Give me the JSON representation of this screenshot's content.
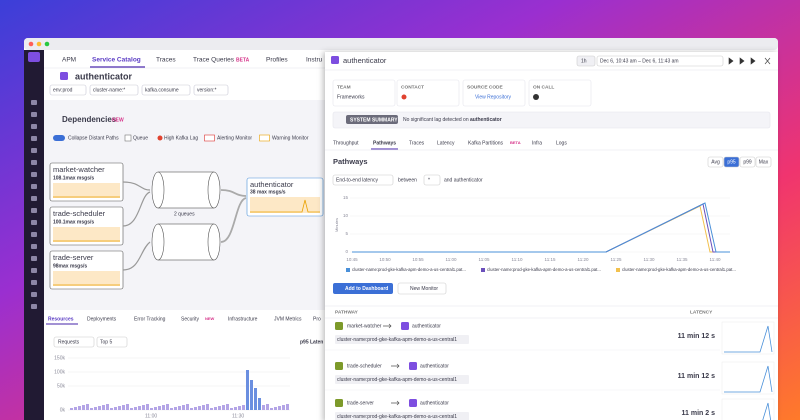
{
  "window": {
    "nav": [
      "APM",
      "Service Catalog",
      "Traces",
      "Trace Queries",
      "Profiles",
      "Instru"
    ],
    "nav_badge": "BETA"
  },
  "service": {
    "name": "authenticator",
    "filters": [
      "env:prod",
      "cluster-name:*",
      "kafka.consume",
      "version:*"
    ]
  },
  "dependencies": {
    "title": "Dependencies",
    "badge": "NEW",
    "legend": [
      "Collapse Distant Paths",
      "Queue",
      "High Kafka Lag",
      "Alerting Monitor",
      "Warning Monitor"
    ],
    "nodes": [
      {
        "name": "market-watcher",
        "rate": "108.1max msgs/s"
      },
      {
        "name": "trade-scheduler",
        "rate": "100.1max msgs/s"
      },
      {
        "name": "trade-server",
        "rate": "98max msgs/s"
      }
    ],
    "queue_label": "2 queues",
    "target": {
      "name": "authenticator",
      "rate": "38 max msgs/s"
    }
  },
  "bottom": {
    "tabs": [
      "Resources",
      "Deployments",
      "Error Tracking",
      "Security",
      "Infrastructure",
      "JVM Metrics",
      "Pro"
    ],
    "badge": "NEW",
    "controls": [
      "Requests",
      "Top 5"
    ],
    "side_title": "p95 Laten",
    "yticks": [
      "150k",
      "100k",
      "50k",
      "0k"
    ],
    "xticks": [
      "11:00",
      "11:30"
    ]
  },
  "panel": {
    "title": "authenticator",
    "range": "1h",
    "dates": "Dec 6, 10:43 am – Dec 6, 11:43 am",
    "info": [
      {
        "label": "TEAM",
        "value": "Frameworks"
      },
      {
        "label": "CONTACT"
      },
      {
        "label": "SOURCE CODE",
        "value": "View Repository"
      },
      {
        "label": "ON CALL"
      }
    ],
    "summary": {
      "label": "SYSTEM SUMMARY",
      "text": "No significant lag detected on ",
      "service": "authenticator"
    },
    "tabs": [
      "Throughput",
      "Pathways",
      "Traces",
      "Latency",
      "Kafka Partitions",
      "Infra",
      "Logs"
    ],
    "tab_badge": "BETA",
    "pathways": {
      "title": "Pathways",
      "stats": [
        "Avg",
        "p95",
        "p99",
        "Max"
      ],
      "metric": "End-to-end latency",
      "between": "between",
      "from": "*",
      "and": "and authenticator",
      "y_label": "Minutes",
      "yticks": [
        "15",
        "10",
        "5",
        "0"
      ],
      "xticks": [
        "10:45",
        "10:50",
        "10:55",
        "11:00",
        "11:05",
        "11:10",
        "11:15",
        "11:20",
        "11:25",
        "11:30",
        "11:35",
        "11:40"
      ],
      "legend": [
        {
          "name": "cluster-name:prod-gke-kafka-apm-demo-a-us-central1.pat...",
          "color": "#4a90d9"
        },
        {
          "name": "cluster-name:prod-gke-kafka-apm-demo-a-us-central1.pat...",
          "color": "#6b4fbb"
        },
        {
          "name": "cluster-name:prod-gke-kafka-apm-demo-a-us-central1.pat...",
          "color": "#f2c14e"
        }
      ]
    },
    "actions": [
      "Add to Dashboard",
      "New Monitor"
    ],
    "table": {
      "columns": [
        "PATHWAY",
        "LATENCY"
      ],
      "rows": [
        {
          "from": "market-watcher",
          "to": "authenticator",
          "tag": "cluster-name:prod-gke-kafka-apm-demo-a-us-central1",
          "latency": "11 min 12 s"
        },
        {
          "from": "trade-scheduler",
          "to": "authenticator",
          "tag": "cluster-name:prod-gke-kafka-apm-demo-a-us-central1",
          "latency": "11 min 12 s"
        },
        {
          "from": "trade-server",
          "to": "authenticator",
          "tag": "cluster-name:prod-gke-kafka-apm-demo-a-us-central1",
          "latency": "11 min 2 s"
        }
      ]
    }
  }
}
